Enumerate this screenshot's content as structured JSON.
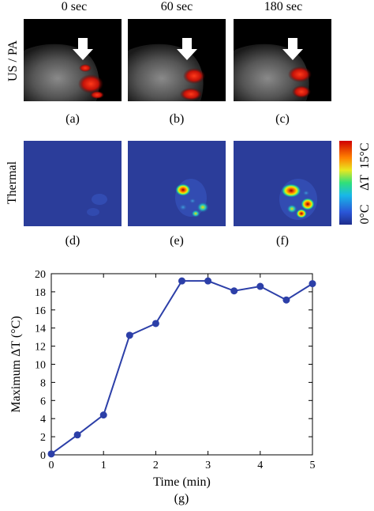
{
  "time_labels": [
    "0 sec",
    "60 sec",
    "180 sec"
  ],
  "row_labels": {
    "us_pa": "US / PA",
    "thermal": "Thermal"
  },
  "panel_labels": {
    "a": "(a)",
    "b": "(b)",
    "c": "(c)",
    "d": "(d)",
    "e": "(e)",
    "f": "(f)",
    "g": "(g)"
  },
  "colorbar": {
    "max_label": "15°C",
    "min_label": "0°C",
    "symbol": "ΔT",
    "min": 0,
    "max": 15
  },
  "colors": {
    "series": "#2c3fa8",
    "thermal_bg": "#2b3d9a",
    "arrow": "#ffffff",
    "us_bg": "#000000"
  },
  "chart_data": {
    "type": "line",
    "xlabel": "Time (min)",
    "ylabel": "Maximum ΔT (°C)",
    "xlim": [
      0,
      5
    ],
    "ylim": [
      0,
      20
    ],
    "xticks": [
      0,
      1,
      2,
      3,
      4,
      5
    ],
    "yticks": [
      0,
      2,
      4,
      6,
      8,
      10,
      12,
      14,
      16,
      18,
      20
    ],
    "grid": false,
    "series": [
      {
        "x": [
          0,
          0.5,
          1,
          1.5,
          2,
          2.5,
          3,
          3.5,
          4,
          4.5,
          5
        ],
        "y": [
          0.1,
          2.2,
          4.4,
          13.2,
          14.5,
          19.2,
          19.2,
          18.1,
          18.6,
          17.1,
          18.9
        ]
      }
    ]
  }
}
